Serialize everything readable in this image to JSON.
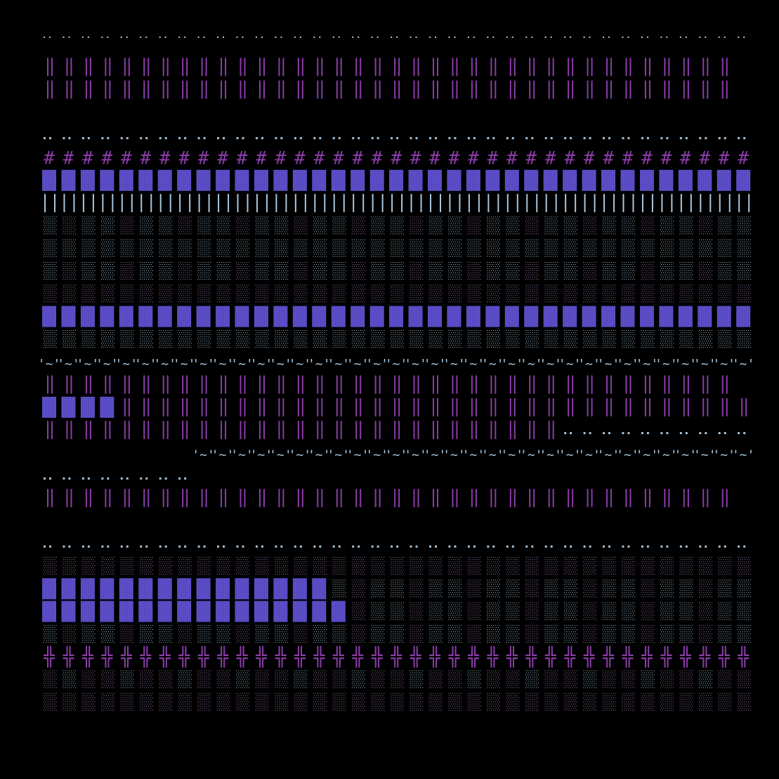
{
  "palette": {
    "background": "#000000",
    "violet": "#8a3ca8",
    "indigo_fill": "#5d4fc7",
    "indigo_dots": "#3f32a6",
    "dot_light": "#a9c6dc",
    "dot_mauve": "#9a7ca8"
  },
  "pattern": {
    "columns": 37,
    "rows": [
      {
        "kind": "dots-sparse",
        "color": "dot_light",
        "from": 0,
        "to": 37
      },
      {
        "kind": "double-bar",
        "color": "violet",
        "from": 0,
        "to": 36
      },
      {
        "kind": "double-bar",
        "color": "violet",
        "from": 0,
        "to": 36
      },
      {
        "kind": "blank"
      },
      {
        "kind": "dot-pair",
        "color": "dot_light",
        "from": 0,
        "to": 37
      },
      {
        "kind": "hash",
        "color": "violet",
        "from": 0,
        "to": 37
      },
      {
        "kind": "solid-block",
        "color": "indigo_fill",
        "from": 0,
        "to": 37
      },
      {
        "kind": "single-bar-pair",
        "color": "dot_light",
        "from": 0,
        "to": 37
      },
      {
        "kind": "stipple",
        "color": "dot_light",
        "from": 0,
        "to": 37,
        "alt": "dot_mauve"
      },
      {
        "kind": "stipple",
        "color": "dot_light",
        "from": 0,
        "to": 37
      },
      {
        "kind": "stipple",
        "color": "dot_light",
        "from": 0,
        "to": 37,
        "alt": "dot_mauve"
      },
      {
        "kind": "stipple",
        "color": "dot_mauve",
        "from": 0,
        "to": 37
      },
      {
        "kind": "solid-block",
        "color": "indigo_fill",
        "from": 0,
        "to": 37
      },
      {
        "kind": "stipple",
        "color": "dot_light",
        "from": 0,
        "to": 37
      },
      {
        "kind": "tilde",
        "color": "dot_light",
        "from": 0,
        "to": 37
      },
      {
        "kind": "double-bar",
        "color": "violet",
        "from": 0,
        "to": 36
      },
      {
        "kind": "mixed-blocks",
        "color": "indigo_fill",
        "blocks": 4,
        "to": 36
      },
      {
        "kind": "double-bar",
        "color": "violet",
        "from": 0,
        "to": 27,
        "tail": "dot-pair"
      },
      {
        "kind": "tilde",
        "color": "dot_light",
        "from": 8,
        "to": 37
      },
      {
        "kind": "dot-pair",
        "color": "dot_light",
        "from": 0,
        "to": 8
      },
      {
        "kind": "double-bar",
        "color": "violet",
        "from": 0,
        "to": 36
      },
      {
        "kind": "blank"
      },
      {
        "kind": "dot-pair",
        "color": "dot_light",
        "from": 0,
        "to": 37
      },
      {
        "kind": "stipple",
        "color": "dot_mauve",
        "from": 0,
        "to": 37
      },
      {
        "kind": "mixed-blocks",
        "color": "indigo_fill",
        "blocks": 15,
        "to": 37
      },
      {
        "kind": "mixed-blocks",
        "color": "indigo_fill",
        "blocks": 16,
        "to": 37
      },
      {
        "kind": "stipple",
        "color": "dot_light",
        "from": 0,
        "to": 37,
        "alt": "dot_mauve"
      },
      {
        "kind": "double-hash",
        "color": "violet",
        "from": 0,
        "to": 37
      },
      {
        "kind": "stipple",
        "color": "dot_mauve",
        "from": 0,
        "to": 37,
        "alt": "dot_light"
      },
      {
        "kind": "stipple",
        "color": "dot_mauve",
        "from": 0,
        "to": 37
      }
    ]
  }
}
